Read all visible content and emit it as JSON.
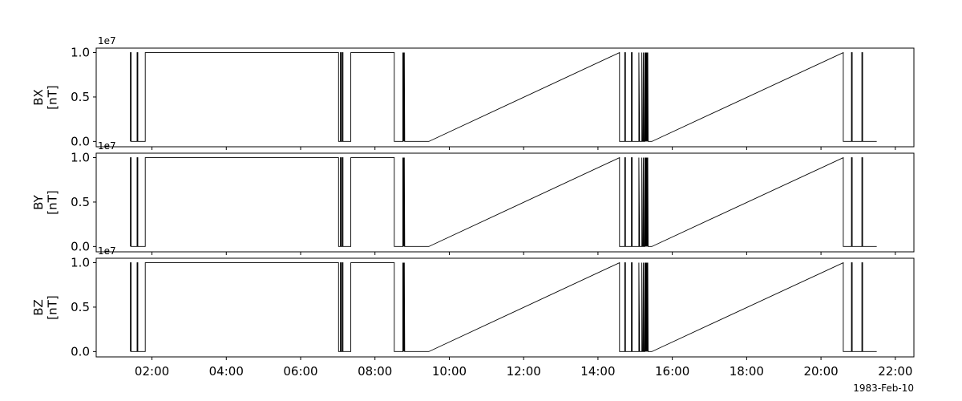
{
  "chart_data": [
    {
      "type": "line",
      "ylabel": "BX\n[nT]",
      "y_exponent_label": "1e7",
      "ylim": [
        -0.06,
        1.05
      ],
      "y_ticks": [
        0.0,
        0.5,
        1.0
      ],
      "y_tick_labels": [
        "0.0",
        "0.5",
        "1.0"
      ],
      "series": [
        {
          "values_hours_y": [
            [
              1.42,
              0.0
            ],
            [
              1.42,
              1.0
            ],
            [
              1.44,
              1.0
            ],
            [
              1.44,
              0.0
            ],
            [
              1.6,
              0.0
            ],
            [
              1.6,
              1.0
            ],
            [
              1.62,
              1.0
            ],
            [
              1.62,
              0.0
            ],
            [
              1.82,
              0.0
            ],
            [
              1.82,
              1.0
            ],
            [
              7.02,
              1.0
            ],
            [
              7.02,
              0.0
            ],
            [
              7.07,
              0.0
            ],
            [
              7.07,
              1.0
            ],
            [
              7.09,
              1.0
            ],
            [
              7.09,
              0.0
            ],
            [
              7.12,
              0.0
            ],
            [
              7.12,
              1.0
            ],
            [
              7.14,
              1.0
            ],
            [
              7.14,
              0.0
            ],
            [
              7.35,
              0.0
            ],
            [
              7.35,
              1.0
            ],
            [
              8.52,
              1.0
            ],
            [
              8.52,
              0.0
            ],
            [
              8.75,
              0.0
            ],
            [
              8.75,
              1.0
            ],
            [
              8.76,
              0.0
            ],
            [
              8.77,
              1.0
            ],
            [
              8.78,
              0.0
            ],
            [
              8.79,
              1.0
            ],
            [
              8.8,
              0.0
            ],
            [
              9.45,
              0.0
            ],
            [
              14.58,
              1.0
            ],
            [
              14.58,
              0.0
            ],
            [
              14.72,
              0.0
            ],
            [
              14.72,
              1.0
            ],
            [
              14.74,
              1.0
            ],
            [
              14.74,
              0.0
            ],
            [
              14.9,
              0.0
            ],
            [
              14.9,
              1.0
            ],
            [
              14.92,
              1.0
            ],
            [
              14.92,
              0.0
            ],
            [
              15.1,
              0.0
            ],
            [
              15.1,
              1.0
            ],
            [
              15.12,
              0.0
            ],
            [
              15.18,
              0.0
            ],
            [
              15.18,
              1.0
            ],
            [
              15.2,
              0.0
            ],
            [
              15.22,
              0.0
            ],
            [
              15.22,
              1.0
            ],
            [
              15.24,
              0.0
            ],
            [
              15.26,
              0.0
            ],
            [
              15.26,
              1.0
            ],
            [
              15.27,
              0.0
            ],
            [
              15.28,
              1.0
            ],
            [
              15.29,
              0.0
            ],
            [
              15.3,
              1.0
            ],
            [
              15.31,
              0.0
            ],
            [
              15.32,
              1.0
            ],
            [
              15.33,
              0.0
            ],
            [
              15.34,
              1.0
            ],
            [
              15.35,
              0.0
            ],
            [
              15.45,
              0.0
            ],
            [
              20.6,
              1.0
            ],
            [
              20.6,
              0.0
            ],
            [
              20.82,
              0.0
            ],
            [
              20.82,
              1.0
            ],
            [
              20.84,
              1.0
            ],
            [
              20.84,
              0.0
            ],
            [
              21.1,
              0.0
            ],
            [
              21.1,
              1.0
            ],
            [
              21.12,
              1.0
            ],
            [
              21.12,
              0.0
            ],
            [
              21.5,
              0.0
            ]
          ]
        }
      ]
    },
    {
      "type": "line",
      "ylabel": "BY\n[nT]",
      "y_exponent_label": "1e7",
      "ylim": [
        -0.06,
        1.05
      ],
      "y_ticks": [
        0.0,
        0.5,
        1.0
      ],
      "y_tick_labels": [
        "0.0",
        "0.5",
        "1.0"
      ],
      "series": [
        {
          "values_hours_y": [
            [
              1.42,
              0.0
            ],
            [
              1.42,
              1.0
            ],
            [
              1.44,
              1.0
            ],
            [
              1.44,
              0.0
            ],
            [
              1.6,
              0.0
            ],
            [
              1.6,
              1.0
            ],
            [
              1.62,
              1.0
            ],
            [
              1.62,
              0.0
            ],
            [
              1.82,
              0.0
            ],
            [
              1.82,
              1.0
            ],
            [
              7.02,
              1.0
            ],
            [
              7.02,
              0.0
            ],
            [
              7.07,
              0.0
            ],
            [
              7.07,
              1.0
            ],
            [
              7.09,
              1.0
            ],
            [
              7.09,
              0.0
            ],
            [
              7.12,
              0.0
            ],
            [
              7.12,
              1.0
            ],
            [
              7.14,
              1.0
            ],
            [
              7.14,
              0.0
            ],
            [
              7.35,
              0.0
            ],
            [
              7.35,
              1.0
            ],
            [
              8.52,
              1.0
            ],
            [
              8.52,
              0.0
            ],
            [
              8.75,
              0.0
            ],
            [
              8.75,
              1.0
            ],
            [
              8.76,
              0.0
            ],
            [
              8.77,
              1.0
            ],
            [
              8.78,
              0.0
            ],
            [
              8.79,
              1.0
            ],
            [
              8.8,
              0.0
            ],
            [
              9.45,
              0.0
            ],
            [
              14.58,
              1.0
            ],
            [
              14.58,
              0.0
            ],
            [
              14.72,
              0.0
            ],
            [
              14.72,
              1.0
            ],
            [
              14.74,
              1.0
            ],
            [
              14.74,
              0.0
            ],
            [
              14.9,
              0.0
            ],
            [
              14.9,
              1.0
            ],
            [
              14.92,
              1.0
            ],
            [
              14.92,
              0.0
            ],
            [
              15.1,
              0.0
            ],
            [
              15.1,
              1.0
            ],
            [
              15.12,
              0.0
            ],
            [
              15.18,
              0.0
            ],
            [
              15.18,
              1.0
            ],
            [
              15.2,
              0.0
            ],
            [
              15.22,
              0.0
            ],
            [
              15.22,
              1.0
            ],
            [
              15.24,
              0.0
            ],
            [
              15.26,
              0.0
            ],
            [
              15.26,
              1.0
            ],
            [
              15.27,
              0.0
            ],
            [
              15.28,
              1.0
            ],
            [
              15.29,
              0.0
            ],
            [
              15.3,
              1.0
            ],
            [
              15.31,
              0.0
            ],
            [
              15.32,
              1.0
            ],
            [
              15.33,
              0.0
            ],
            [
              15.34,
              1.0
            ],
            [
              15.35,
              0.0
            ],
            [
              15.45,
              0.0
            ],
            [
              20.6,
              1.0
            ],
            [
              20.6,
              0.0
            ],
            [
              20.82,
              0.0
            ],
            [
              20.82,
              1.0
            ],
            [
              20.84,
              1.0
            ],
            [
              20.84,
              0.0
            ],
            [
              21.1,
              0.0
            ],
            [
              21.1,
              1.0
            ],
            [
              21.12,
              1.0
            ],
            [
              21.12,
              0.0
            ],
            [
              21.5,
              0.0
            ]
          ]
        }
      ]
    },
    {
      "type": "line",
      "ylabel": "BZ\n[nT]",
      "y_exponent_label": "1e7",
      "ylim": [
        -0.06,
        1.05
      ],
      "y_ticks": [
        0.0,
        0.5,
        1.0
      ],
      "y_tick_labels": [
        "0.0",
        "0.5",
        "1.0"
      ],
      "series": [
        {
          "values_hours_y": [
            [
              1.42,
              0.0
            ],
            [
              1.42,
              1.0
            ],
            [
              1.44,
              1.0
            ],
            [
              1.44,
              0.0
            ],
            [
              1.6,
              0.0
            ],
            [
              1.6,
              1.0
            ],
            [
              1.62,
              1.0
            ],
            [
              1.62,
              0.0
            ],
            [
              1.82,
              0.0
            ],
            [
              1.82,
              1.0
            ],
            [
              7.02,
              1.0
            ],
            [
              7.02,
              0.0
            ],
            [
              7.07,
              0.0
            ],
            [
              7.07,
              1.0
            ],
            [
              7.09,
              1.0
            ],
            [
              7.09,
              0.0
            ],
            [
              7.12,
              0.0
            ],
            [
              7.12,
              1.0
            ],
            [
              7.14,
              1.0
            ],
            [
              7.14,
              0.0
            ],
            [
              7.35,
              0.0
            ],
            [
              7.35,
              1.0
            ],
            [
              8.52,
              1.0
            ],
            [
              8.52,
              0.0
            ],
            [
              8.75,
              0.0
            ],
            [
              8.75,
              1.0
            ],
            [
              8.76,
              0.0
            ],
            [
              8.77,
              1.0
            ],
            [
              8.78,
              0.0
            ],
            [
              8.79,
              1.0
            ],
            [
              8.8,
              0.0
            ],
            [
              9.45,
              0.0
            ],
            [
              14.58,
              1.0
            ],
            [
              14.58,
              0.0
            ],
            [
              14.72,
              0.0
            ],
            [
              14.72,
              1.0
            ],
            [
              14.74,
              1.0
            ],
            [
              14.74,
              0.0
            ],
            [
              14.9,
              0.0
            ],
            [
              14.9,
              1.0
            ],
            [
              14.92,
              1.0
            ],
            [
              14.92,
              0.0
            ],
            [
              15.1,
              0.0
            ],
            [
              15.1,
              1.0
            ],
            [
              15.12,
              0.0
            ],
            [
              15.18,
              0.0
            ],
            [
              15.18,
              1.0
            ],
            [
              15.2,
              0.0
            ],
            [
              15.22,
              0.0
            ],
            [
              15.22,
              1.0
            ],
            [
              15.24,
              0.0
            ],
            [
              15.26,
              0.0
            ],
            [
              15.26,
              1.0
            ],
            [
              15.27,
              0.0
            ],
            [
              15.28,
              1.0
            ],
            [
              15.29,
              0.0
            ],
            [
              15.3,
              1.0
            ],
            [
              15.31,
              0.0
            ],
            [
              15.32,
              1.0
            ],
            [
              15.33,
              0.0
            ],
            [
              15.34,
              1.0
            ],
            [
              15.35,
              0.0
            ],
            [
              15.45,
              0.0
            ],
            [
              20.6,
              1.0
            ],
            [
              20.6,
              0.0
            ],
            [
              20.82,
              0.0
            ],
            [
              20.82,
              1.0
            ],
            [
              20.84,
              1.0
            ],
            [
              20.84,
              0.0
            ],
            [
              21.1,
              0.0
            ],
            [
              21.1,
              1.0
            ],
            [
              21.12,
              1.0
            ],
            [
              21.12,
              0.0
            ],
            [
              21.5,
              0.0
            ]
          ]
        }
      ]
    }
  ],
  "x_axis": {
    "xlim_hours": [
      0.5,
      22.5
    ],
    "ticks_hours": [
      2,
      4,
      6,
      8,
      10,
      12,
      14,
      16,
      18,
      20,
      22
    ],
    "tick_labels": [
      "02:00",
      "04:00",
      "06:00",
      "08:00",
      "10:00",
      "12:00",
      "14:00",
      "16:00",
      "18:00",
      "20:00",
      "22:00"
    ],
    "date_label": "1983-Feb-10"
  },
  "style": {
    "line_color": "#000000",
    "background": "#ffffff"
  }
}
